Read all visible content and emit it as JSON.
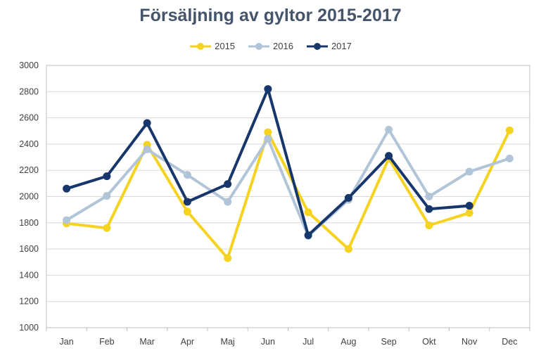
{
  "chart_data": {
    "type": "line",
    "title": "Försäljning av gyltor 2015-2017",
    "categories": [
      "Jan",
      "Feb",
      "Mar",
      "Apr",
      "Maj",
      "Jun",
      "Jul",
      "Aug",
      "Sep",
      "Okt",
      "Nov",
      "Dec"
    ],
    "ylim": [
      1000,
      3000
    ],
    "yticks": [
      1000,
      1200,
      1400,
      1600,
      1800,
      2000,
      2200,
      2400,
      2600,
      2800,
      3000
    ],
    "grid": true,
    "legend_position": "top",
    "series": [
      {
        "name": "2015",
        "color": "#f5d320",
        "values": [
          1795,
          1760,
          2395,
          1885,
          1530,
          2490,
          1880,
          1600,
          2290,
          1780,
          1875,
          2505
        ]
      },
      {
        "name": "2016",
        "color": "#b2c5d8",
        "values": [
          1820,
          2005,
          2360,
          2165,
          1960,
          2440,
          1700,
          1975,
          2510,
          2000,
          2190,
          2290
        ]
      },
      {
        "name": "2017",
        "color": "#17366b",
        "values": [
          2060,
          2155,
          2560,
          1960,
          2095,
          2820,
          1705,
          1990,
          2310,
          1905,
          1930,
          null
        ]
      }
    ]
  }
}
